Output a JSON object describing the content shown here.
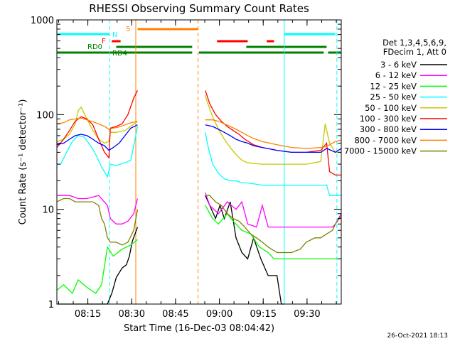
{
  "chart_data": {
    "type": "line",
    "title": "RHESSI Observing Summary Count Rates",
    "xlabel": "Start Time (16-Dec-03 08:04:42)",
    "ylabel": "Count Rate (s⁻¹ detector⁻¹)",
    "y_scale": "log",
    "ylim": [
      1,
      1000
    ],
    "xlim_min": [
      4.7,
      102
    ],
    "x_ticks": [
      {
        "min": 15.3,
        "label": "08:15"
      },
      {
        "min": 30.3,
        "label": "08:30"
      },
      {
        "min": 45.3,
        "label": "08:45"
      },
      {
        "min": 60.3,
        "label": "09:00"
      },
      {
        "min": 75.3,
        "label": "09:15"
      },
      {
        "min": 90.3,
        "label": "09:30"
      }
    ],
    "y_ticks": [
      {
        "value": 1,
        "label": "1"
      },
      {
        "value": 10,
        "label": "10"
      },
      {
        "value": 100,
        "label": "100"
      },
      {
        "value": 1000,
        "label": "1000"
      }
    ],
    "legend_header": [
      "Det 1,3,4,5,6,9,",
      "FDecim 1, Att 0"
    ],
    "legend_position": "right",
    "timestamp": "26-Oct-2021 18:13",
    "flags": [
      {
        "label": "N",
        "color": "#00ffff",
        "segments": [
          [
            4.7,
            22.7
          ],
          [
            82.5,
            100
          ]
        ]
      },
      {
        "label": "S",
        "color": "#ff8000",
        "segments": [
          [
            32.3,
            53
          ]
        ]
      },
      {
        "label": "F",
        "color": "#ff0000",
        "segments": [
          [
            23.5,
            26.5
          ],
          [
            59.5,
            70
          ],
          [
            76.5,
            79
          ]
        ]
      },
      {
        "label": "RD0",
        "color": "#008000",
        "segments": [
          [
            25,
            51
          ],
          [
            69.5,
            97
          ]
        ]
      },
      {
        "label": "RD4",
        "color": "#008000",
        "segments": [
          [
            4.7,
            51
          ],
          [
            53.3,
            96
          ],
          [
            97.5,
            102
          ]
        ]
      }
    ],
    "vertical_markers": [
      {
        "min": 22.7,
        "color": "#00ffff",
        "style": "dashed"
      },
      {
        "min": 31.7,
        "color": "#ff8000",
        "style": "solid"
      },
      {
        "min": 53,
        "color": "#ff8000",
        "style": "dashed"
      },
      {
        "min": 82.5,
        "color": "#00ffff",
        "style": "solid"
      },
      {
        "min": 100.5,
        "color": "#00ffff",
        "style": "dashed"
      }
    ],
    "gap": [
      32.3,
      55.5
    ],
    "series": [
      {
        "name": "3 - 6 keV",
        "color": "#000000",
        "x": [
          4.7,
          19,
          22,
          23.5,
          25,
          27,
          28.5,
          29.5,
          30.5,
          32.3,
          55.5,
          57,
          59,
          60.5,
          62,
          64,
          66,
          68,
          70,
          72,
          74.5,
          77,
          80,
          81.5,
          82.5
        ],
        "y": [
          1,
          1,
          1,
          1.3,
          1.9,
          2.4,
          2.6,
          3.2,
          4.6,
          6.5,
          14,
          11,
          8,
          11,
          8,
          12,
          5,
          3.5,
          3,
          5,
          3,
          2,
          2,
          1,
          1
        ]
      },
      {
        "name": "6 - 12 keV",
        "color": "#ff00ff",
        "x": [
          4.7,
          9,
          12,
          15,
          19,
          22,
          23,
          25,
          27,
          29,
          31,
          32.3,
          55.5,
          57,
          60,
          63,
          66,
          68,
          70,
          73,
          75,
          77,
          80,
          85,
          90,
          95,
          97,
          99,
          100,
          102
        ],
        "y": [
          14,
          14,
          13,
          13,
          14,
          11,
          8,
          7,
          7,
          7.5,
          9,
          13,
          15,
          11,
          9,
          12,
          10,
          12,
          7,
          6.5,
          11,
          6.5,
          6.5,
          6.5,
          6.5,
          6.5,
          6.5,
          6.5,
          7,
          9
        ]
      },
      {
        "name": "12 - 25 keV",
        "color": "#00ff00",
        "x": [
          4.7,
          7,
          10,
          12,
          15,
          18,
          20,
          22,
          24,
          27,
          30,
          32.3,
          55.5,
          58,
          60,
          63,
          65,
          68,
          71,
          74,
          77,
          79,
          82,
          85,
          90,
          95,
          98,
          102
        ],
        "y": [
          1.4,
          1.6,
          1.3,
          1.8,
          1.5,
          1.3,
          1.6,
          4,
          3.2,
          3.8,
          4.2,
          4.8,
          11,
          8,
          7,
          9,
          7.5,
          6,
          5.5,
          4,
          3.5,
          3,
          3,
          3,
          3,
          3,
          3,
          3
        ]
      },
      {
        "name": "25 - 50 keV",
        "color": "#00ffff",
        "x": [
          4.7,
          6,
          8,
          10,
          12,
          14,
          16,
          18,
          20,
          22,
          23,
          25,
          28,
          30,
          32.3,
          55.5,
          56.5,
          58,
          60,
          62,
          64,
          66,
          68,
          70,
          75,
          80,
          85,
          90,
          95,
          97,
          98,
          100,
          101,
          102
        ],
        "y": [
          30,
          30,
          40,
          52,
          60,
          58,
          48,
          38,
          28,
          22,
          30,
          29,
          31,
          33,
          75,
          65,
          45,
          30,
          24,
          21,
          20,
          20,
          19,
          19,
          18,
          18,
          18,
          18,
          18,
          18,
          14,
          14,
          14,
          14
        ]
      },
      {
        "name": "50 - 100 keV",
        "color": "#c8c800",
        "x": [
          4.7,
          7,
          9,
          11,
          12,
          13,
          15,
          17,
          19,
          21,
          22.5,
          23,
          25,
          28,
          30,
          32.3,
          55.5,
          56,
          58,
          60,
          62,
          64,
          66,
          68,
          70,
          75,
          80,
          85,
          90,
          95,
          96.5,
          98,
          100,
          102
        ],
        "y": [
          52,
          55,
          62,
          80,
          110,
          120,
          90,
          68,
          55,
          50,
          52,
          65,
          65,
          68,
          75,
          85,
          160,
          140,
          95,
          70,
          55,
          45,
          38,
          33,
          31,
          30,
          30,
          30,
          30,
          32,
          80,
          50,
          40,
          40
        ]
      },
      {
        "name": "100 - 300 keV",
        "color": "#ff0000",
        "x": [
          4.7,
          7,
          9,
          11,
          13,
          15,
          17,
          19,
          21,
          22.5,
          23,
          25,
          27,
          29,
          31,
          32.3,
          55.5,
          57,
          59,
          61,
          63,
          65,
          67,
          69,
          72,
          75,
          80,
          85,
          90,
          95,
          97,
          98,
          100,
          102
        ],
        "y": [
          45,
          55,
          68,
          85,
          95,
          90,
          78,
          55,
          40,
          35,
          72,
          75,
          80,
          100,
          150,
          180,
          180,
          130,
          100,
          85,
          75,
          68,
          62,
          55,
          48,
          45,
          42,
          40,
          40,
          42,
          50,
          25,
          23,
          23
        ]
      },
      {
        "name": "300 - 800 keV",
        "color": "#0000ff",
        "x": [
          4.7,
          7,
          9,
          11,
          13,
          15,
          17,
          19,
          21,
          22.5,
          24,
          26,
          28,
          30,
          32.3,
          55.5,
          58,
          60,
          62,
          64,
          66,
          68,
          70,
          72,
          75,
          80,
          85,
          90,
          95,
          97,
          100,
          102
        ],
        "y": [
          48,
          50,
          55,
          60,
          62,
          60,
          55,
          50,
          47,
          42,
          45,
          50,
          60,
          72,
          78,
          78,
          75,
          70,
          65,
          60,
          55,
          52,
          50,
          47,
          45,
          42,
          40,
          40,
          40,
          44,
          40,
          44
        ]
      },
      {
        "name": "800 - 7000 keV",
        "color": "#ff8000",
        "x": [
          4.7,
          7,
          9,
          11,
          13,
          15,
          17,
          19,
          21,
          22.5,
          24,
          26,
          28,
          30,
          32.3,
          55.5,
          58,
          60,
          62,
          64,
          66,
          68,
          70,
          72,
          75,
          80,
          85,
          90,
          95,
          97,
          99,
          100,
          102
        ],
        "y": [
          80,
          82,
          88,
          90,
          92,
          88,
          84,
          80,
          75,
          70,
          72,
          74,
          78,
          82,
          85,
          88,
          88,
          85,
          80,
          75,
          70,
          65,
          60,
          56,
          52,
          48,
          45,
          44,
          45,
          46,
          50,
          52,
          54
        ]
      },
      {
        "name": "7000 - 15000 keV",
        "color": "#808000",
        "x": [
          4.7,
          7,
          9,
          11,
          13,
          15,
          17,
          19,
          20,
          21,
          22,
          23,
          25,
          27,
          29,
          31,
          32.3,
          55.5,
          57,
          59,
          61,
          63,
          65,
          67,
          69,
          71,
          73,
          75,
          77,
          80,
          85,
          88,
          90,
          93,
          95,
          97,
          99,
          100,
          102
        ],
        "y": [
          12,
          13,
          13,
          12,
          12,
          12,
          12,
          11,
          8,
          7,
          5,
          4.5,
          4.5,
          4.2,
          4.5,
          6,
          10,
          14,
          14,
          12,
          11,
          9,
          8,
          7.5,
          6.5,
          5.5,
          5,
          4.5,
          4,
          3.5,
          3.5,
          3.8,
          4.5,
          5,
          5,
          5.5,
          6,
          7,
          8.5
        ]
      }
    ]
  }
}
